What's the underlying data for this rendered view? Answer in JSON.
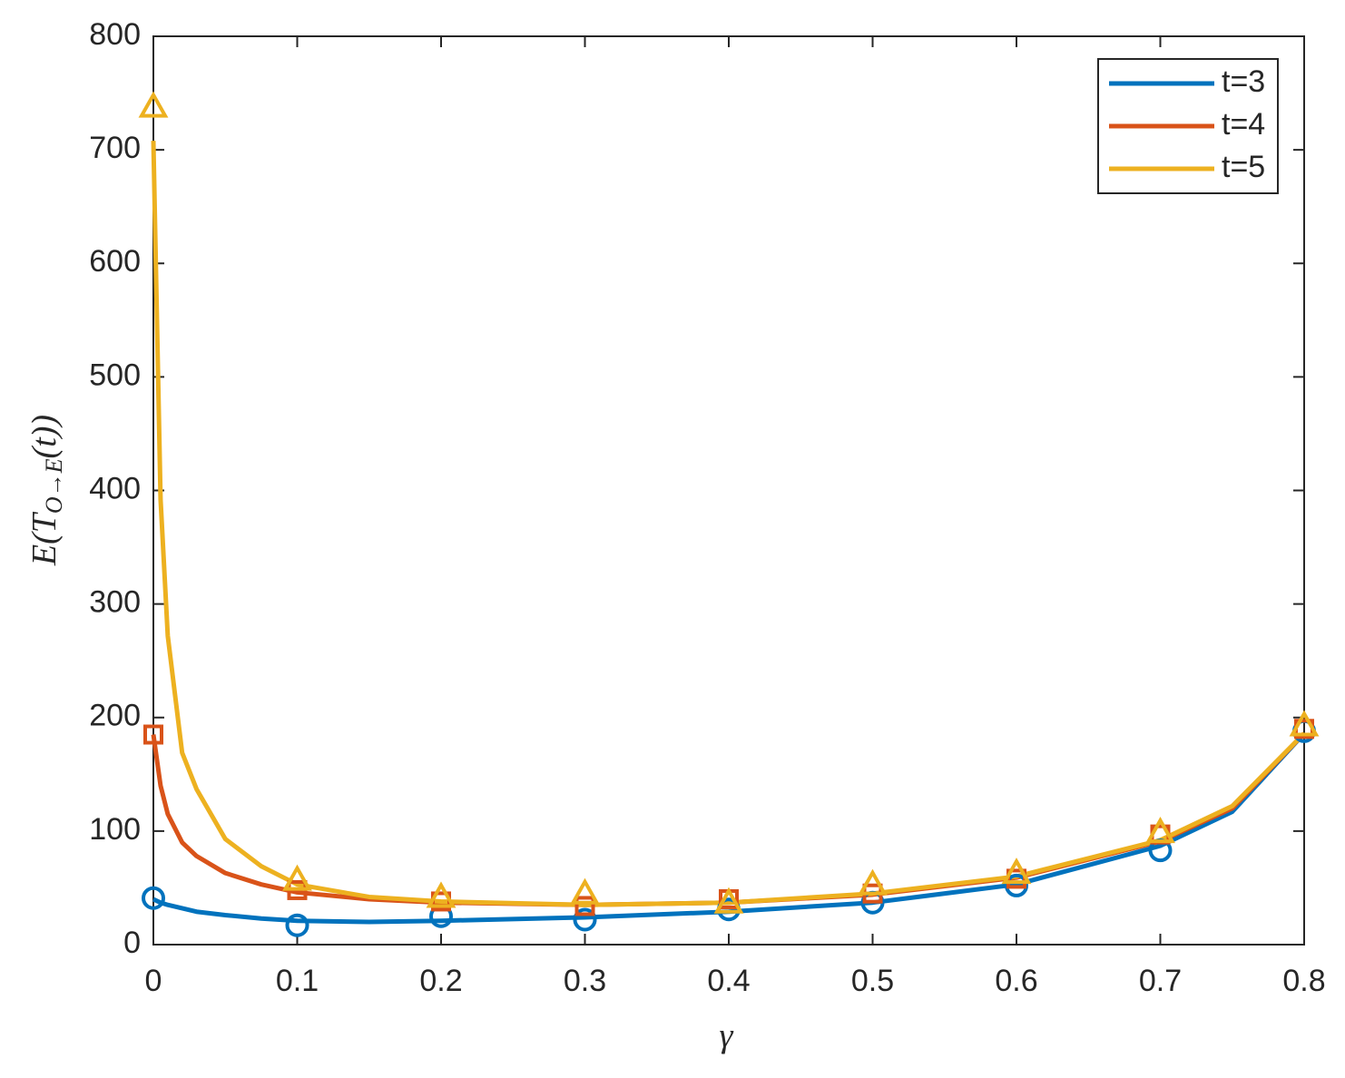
{
  "chart_data": {
    "type": "line",
    "xlabel": "γ",
    "ylabel": {
      "main": "E(T",
      "sub": "O→E",
      "tail": "(t))"
    },
    "x": [
      0,
      0.1,
      0.2,
      0.3,
      0.4,
      0.5,
      0.6,
      0.7,
      0.8
    ],
    "curve_x": [
      0,
      0.005,
      0.01,
      0.02,
      0.03,
      0.05,
      0.075,
      0.1,
      0.15,
      0.2,
      0.3,
      0.4,
      0.5,
      0.6,
      0.7,
      0.75,
      0.8
    ],
    "series": [
      {
        "name": "t=3",
        "color": "#0072BD",
        "marker": "circle",
        "values": [
          41,
          17,
          25,
          22,
          31,
          37,
          52,
          83,
          188
        ],
        "curve": [
          40,
          37,
          35,
          32,
          29,
          26,
          23,
          21,
          20,
          21,
          24,
          29,
          37,
          53,
          87,
          117,
          186
        ]
      },
      {
        "name": "t=4",
        "color": "#D95319",
        "marker": "square",
        "values": [
          185,
          48,
          38,
          34,
          40,
          45,
          58,
          97,
          190
        ],
        "curve": [
          185,
          140,
          115,
          90,
          78,
          63,
          53,
          46,
          40,
          37,
          35,
          37,
          44,
          59,
          91,
          120,
          186
        ]
      },
      {
        "name": "t=5",
        "color": "#EDB120",
        "marker": "triangle",
        "values": [
          738,
          57,
          42,
          45,
          37,
          53,
          63,
          99,
          193
        ],
        "curve": [
          708,
          392,
          272,
          169,
          137,
          93,
          69,
          53,
          42,
          38,
          35,
          37,
          45,
          60,
          92,
          122,
          186
        ]
      }
    ],
    "xlim": [
      0,
      0.8
    ],
    "xticks": [
      0,
      0.1,
      0.2,
      0.3,
      0.4,
      0.5,
      0.6,
      0.7,
      0.8
    ],
    "ylim": [
      0,
      800
    ],
    "yticks": [
      0,
      100,
      200,
      300,
      400,
      500,
      600,
      700,
      800
    ],
    "grid": false,
    "legend": "top-right"
  }
}
